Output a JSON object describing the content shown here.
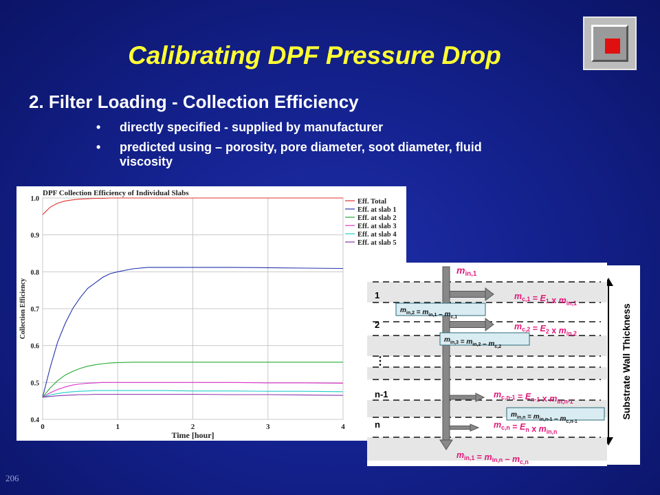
{
  "slide": {
    "title": "Calibrating DPF Pressure Drop",
    "heading": "2. Filter Loading - Collection Efficiency",
    "bullets": [
      "directly specified - supplied by manufacturer",
      "predicted using – porosity, pore diameter, soot diameter, fluid viscosity"
    ],
    "slide_number": "206",
    "colors": {
      "background": "#14228f",
      "title": "#ffff33",
      "text": "#ffffff"
    }
  },
  "chart_data": {
    "type": "line",
    "title": "DPF Collection Efficiency of Individual Slabs",
    "xlabel": "Time [hour]",
    "ylabel": "Collection Efficiency",
    "xlim": [
      0,
      4
    ],
    "ylim": [
      0.4,
      1.0
    ],
    "x_ticks": [
      "0",
      "1",
      "2",
      "3",
      "4"
    ],
    "y_ticks": [
      "0.4",
      "0.5",
      "0.6",
      "0.7",
      "0.8",
      "0.9",
      "1.0"
    ],
    "grid": true,
    "legend_position": "top-right",
    "x": [
      0,
      0.1,
      0.2,
      0.3,
      0.4,
      0.5,
      0.6,
      0.7,
      0.8,
      0.9,
      1.0,
      1.2,
      1.4,
      1.6,
      2.0,
      2.5,
      3.0,
      3.5,
      4.0
    ],
    "series": [
      {
        "name": "Eff. Total",
        "color": "#e03030",
        "values": [
          0.955,
          0.975,
          0.986,
          0.992,
          0.995,
          0.997,
          0.998,
          0.999,
          0.999,
          1.0,
          1.0,
          1.0,
          1.0,
          1.0,
          1.0,
          1.0,
          1.0,
          1.0,
          1.0
        ]
      },
      {
        "name": "Eff. at slab 1",
        "color": "#2233aa",
        "values": [
          0.46,
          0.54,
          0.61,
          0.66,
          0.7,
          0.73,
          0.755,
          0.77,
          0.785,
          0.795,
          0.8,
          0.808,
          0.812,
          0.812,
          0.812,
          0.812,
          0.811,
          0.81,
          0.809
        ]
      },
      {
        "name": "Eff. at slab 2",
        "color": "#22aa33",
        "values": [
          0.46,
          0.485,
          0.505,
          0.52,
          0.53,
          0.538,
          0.544,
          0.548,
          0.551,
          0.553,
          0.554,
          0.555,
          0.555,
          0.555,
          0.555,
          0.555,
          0.555,
          0.555,
          0.555
        ]
      },
      {
        "name": "Eff. at slab 3",
        "color": "#dd33cc",
        "values": [
          0.46,
          0.472,
          0.481,
          0.488,
          0.493,
          0.496,
          0.498,
          0.499,
          0.5,
          0.5,
          0.5,
          0.5,
          0.5,
          0.5,
          0.5,
          0.5,
          0.499,
          0.499,
          0.498
        ]
      },
      {
        "name": "Eff. at slab 4",
        "color": "#22cccc",
        "values": [
          0.46,
          0.466,
          0.47,
          0.473,
          0.475,
          0.476,
          0.477,
          0.478,
          0.478,
          0.478,
          0.478,
          0.478,
          0.478,
          0.478,
          0.477,
          0.477,
          0.476,
          0.476,
          0.475
        ]
      },
      {
        "name": "Eff. at slab 5",
        "color": "#8833aa",
        "values": [
          0.46,
          0.462,
          0.464,
          0.465,
          0.466,
          0.467,
          0.467,
          0.468,
          0.468,
          0.468,
          0.468,
          0.468,
          0.468,
          0.468,
          0.468,
          0.467,
          0.467,
          0.466,
          0.465
        ]
      }
    ]
  },
  "diagram": {
    "vertical_label": "Substrate Wall Thickness",
    "slab_labels": [
      "1",
      "2",
      "n-1",
      "n"
    ],
    "ellipsis": "⋮",
    "input_var": {
      "m": "m",
      "sub": "in,1"
    },
    "output_eq": [
      {
        "t": "m",
        "i": true
      },
      {
        "t": "in,1",
        "sub": true
      },
      {
        "t": " = "
      },
      {
        "t": "m",
        "i": true
      },
      {
        "t": "in,n",
        "sub": true
      },
      {
        "t": " – "
      },
      {
        "t": "m",
        "i": true
      },
      {
        "t": "c,n",
        "sub": true
      }
    ],
    "right_equations": [
      [
        {
          "t": "m",
          "i": true
        },
        {
          "t": "c,1",
          "sub": true
        },
        {
          "t": " = "
        },
        {
          "t": "E",
          "i": true
        },
        {
          "t": "1",
          "sub": true
        },
        {
          "t": " x "
        },
        {
          "t": "m",
          "i": true
        },
        {
          "t": "in,1",
          "sub": true
        }
      ],
      [
        {
          "t": "m",
          "i": true
        },
        {
          "t": "c,2",
          "sub": true
        },
        {
          "t": " = "
        },
        {
          "t": "E",
          "i": true
        },
        {
          "t": "2",
          "sub": true
        },
        {
          "t": " x "
        },
        {
          "t": "m",
          "i": true
        },
        {
          "t": "in,2",
          "sub": true
        }
      ],
      [
        {
          "t": "m",
          "i": true
        },
        {
          "t": "c,n-1",
          "sub": true
        },
        {
          "t": " = "
        },
        {
          "t": "E",
          "i": true
        },
        {
          "t": "n-1",
          "sub": true
        },
        {
          "t": " x "
        },
        {
          "t": "m",
          "i": true
        },
        {
          "t": "in,n-1",
          "sub": true
        }
      ],
      [
        {
          "t": "m",
          "i": true
        },
        {
          "t": "c,n",
          "sub": true
        },
        {
          "t": " = "
        },
        {
          "t": "E",
          "i": true
        },
        {
          "t": "n",
          "sub": true
        },
        {
          "t": " x "
        },
        {
          "t": "m",
          "i": true
        },
        {
          "t": "in,n",
          "sub": true
        }
      ]
    ],
    "box_equations": [
      [
        {
          "t": "m",
          "i": true
        },
        {
          "t": "in,2",
          "sub": true
        },
        {
          "t": " = "
        },
        {
          "t": "m",
          "i": true
        },
        {
          "t": "in,1",
          "sub": true
        },
        {
          "t": " – "
        },
        {
          "t": "m",
          "i": true
        },
        {
          "t": "c,1",
          "sub": true
        }
      ],
      [
        {
          "t": "m",
          "i": true
        },
        {
          "t": "in,3",
          "sub": true
        },
        {
          "t": " = "
        },
        {
          "t": "m",
          "i": true
        },
        {
          "t": "in,2",
          "sub": true
        },
        {
          "t": " – "
        },
        {
          "t": "m",
          "i": true
        },
        {
          "t": "c,2",
          "sub": true
        }
      ],
      [
        {
          "t": "m",
          "i": true
        },
        {
          "t": "in,n",
          "sub": true
        },
        {
          "t": " = "
        },
        {
          "t": "m",
          "i": true
        },
        {
          "t": "in,n-1",
          "sub": true
        },
        {
          "t": " – "
        },
        {
          "t": "m",
          "i": true
        },
        {
          "t": "c,n-1",
          "sub": true
        }
      ]
    ],
    "colors": {
      "equation": "#e0187a",
      "box_fill": "#d9ecf2",
      "box_border": "#2a6a7a",
      "shading": "#e6e6e6"
    }
  }
}
